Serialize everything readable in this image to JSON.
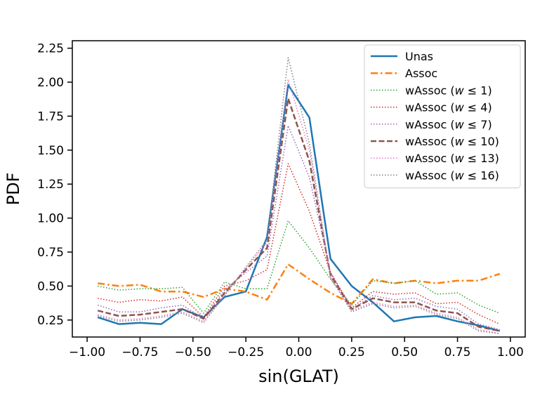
{
  "chart_data": {
    "type": "line",
    "title": "",
    "xlabel": "sin(GLAT)",
    "ylabel": "PDF",
    "xlim": [
      -1.07,
      1.07
    ],
    "ylim": [
      0.125,
      2.305
    ],
    "xticks": [
      -1.0,
      -0.75,
      -0.5,
      -0.25,
      0.0,
      0.25,
      0.5,
      0.75,
      1.0
    ],
    "xtick_labels": [
      "−1.00",
      "−0.75",
      "−0.50",
      "−0.25",
      "0.00",
      "0.25",
      "0.50",
      "0.75",
      "1.00"
    ],
    "yticks": [
      0.25,
      0.5,
      0.75,
      1.0,
      1.25,
      1.5,
      1.75,
      2.0,
      2.25
    ],
    "ytick_labels": [
      "0.25",
      "0.50",
      "0.75",
      "1.00",
      "1.25",
      "1.50",
      "1.75",
      "2.00",
      "2.25"
    ],
    "legend_position": "top-right",
    "x": [
      -0.95,
      -0.85,
      -0.75,
      -0.65,
      -0.55,
      -0.45,
      -0.35,
      -0.25,
      -0.15,
      -0.05,
      0.05,
      0.15,
      0.25,
      0.35,
      0.45,
      0.55,
      0.65,
      0.75,
      0.85,
      0.95
    ],
    "series": [
      {
        "name": "Unas",
        "label_prefix": "Unas",
        "w": "",
        "color": "#1f77b4",
        "style": "solid",
        "width": 2.5,
        "values": [
          0.27,
          0.22,
          0.23,
          0.22,
          0.33,
          0.27,
          0.42,
          0.46,
          0.86,
          1.98,
          1.74,
          0.7,
          0.5,
          0.38,
          0.24,
          0.27,
          0.28,
          0.24,
          0.21,
          0.17
        ]
      },
      {
        "name": "Assoc",
        "label_prefix": "Assoc",
        "w": "",
        "color": "#ff7f0e",
        "style": "dashdot",
        "width": 2.5,
        "values": [
          0.52,
          0.5,
          0.51,
          0.46,
          0.46,
          0.42,
          0.48,
          0.46,
          0.4,
          0.66,
          0.55,
          0.45,
          0.37,
          0.55,
          0.52,
          0.54,
          0.52,
          0.54,
          0.54,
          0.59
        ]
      },
      {
        "name": "wAssoc (w ≤ 1)",
        "label_prefix": "wAssoc (",
        "w": " ≤ 1)",
        "color": "#2ca02c",
        "style": "dotted",
        "width": 1.5,
        "values": [
          0.5,
          0.47,
          0.48,
          0.48,
          0.49,
          0.3,
          0.53,
          0.48,
          0.48,
          0.98,
          0.78,
          0.55,
          0.36,
          0.54,
          0.52,
          0.54,
          0.44,
          0.45,
          0.36,
          0.3
        ]
      },
      {
        "name": "wAssoc (w ≤ 4)",
        "label_prefix": "wAssoc (",
        "w": " ≤ 4)",
        "color": "#d62728",
        "style": "dotted",
        "width": 1.5,
        "values": [
          0.41,
          0.38,
          0.4,
          0.39,
          0.42,
          0.27,
          0.5,
          0.54,
          0.62,
          1.4,
          1.05,
          0.6,
          0.34,
          0.46,
          0.44,
          0.45,
          0.37,
          0.38,
          0.29,
          0.22
        ]
      },
      {
        "name": "wAssoc (w ≤ 7)",
        "label_prefix": "wAssoc (",
        "w": " ≤ 7)",
        "color": "#9467bd",
        "style": "dotted",
        "width": 1.5,
        "values": [
          0.36,
          0.31,
          0.31,
          0.34,
          0.36,
          0.26,
          0.47,
          0.6,
          0.72,
          1.68,
          1.3,
          0.6,
          0.33,
          0.43,
          0.4,
          0.41,
          0.35,
          0.33,
          0.22,
          0.18
        ]
      },
      {
        "name": "wAssoc (w ≤ 10)",
        "label_prefix": "wAssoc (",
        "w": " ≤ 10)",
        "color": "#8c564b",
        "style": "dashed",
        "width": 2.5,
        "values": [
          0.32,
          0.28,
          0.29,
          0.31,
          0.33,
          0.26,
          0.45,
          0.62,
          0.78,
          1.88,
          1.42,
          0.58,
          0.33,
          0.41,
          0.38,
          0.38,
          0.32,
          0.3,
          0.2,
          0.17
        ]
      },
      {
        "name": "wAssoc (w ≤ 13)",
        "label_prefix": "wAssoc (",
        "w": " ≤ 13)",
        "color": "#e377c2",
        "style": "dotted",
        "width": 1.5,
        "values": [
          0.29,
          0.25,
          0.26,
          0.28,
          0.31,
          0.24,
          0.44,
          0.63,
          0.82,
          2.02,
          1.5,
          0.57,
          0.32,
          0.38,
          0.35,
          0.36,
          0.3,
          0.27,
          0.18,
          0.15
        ]
      },
      {
        "name": "wAssoc (w ≤ 16)",
        "label_prefix": "wAssoc (",
        "w": " ≤ 16)",
        "color": "#7f7f7f",
        "style": "dotted",
        "width": 1.5,
        "values": [
          0.28,
          0.24,
          0.25,
          0.27,
          0.3,
          0.23,
          0.43,
          0.64,
          0.84,
          2.18,
          1.55,
          0.56,
          0.31,
          0.37,
          0.34,
          0.35,
          0.29,
          0.26,
          0.17,
          0.15
        ]
      }
    ]
  }
}
